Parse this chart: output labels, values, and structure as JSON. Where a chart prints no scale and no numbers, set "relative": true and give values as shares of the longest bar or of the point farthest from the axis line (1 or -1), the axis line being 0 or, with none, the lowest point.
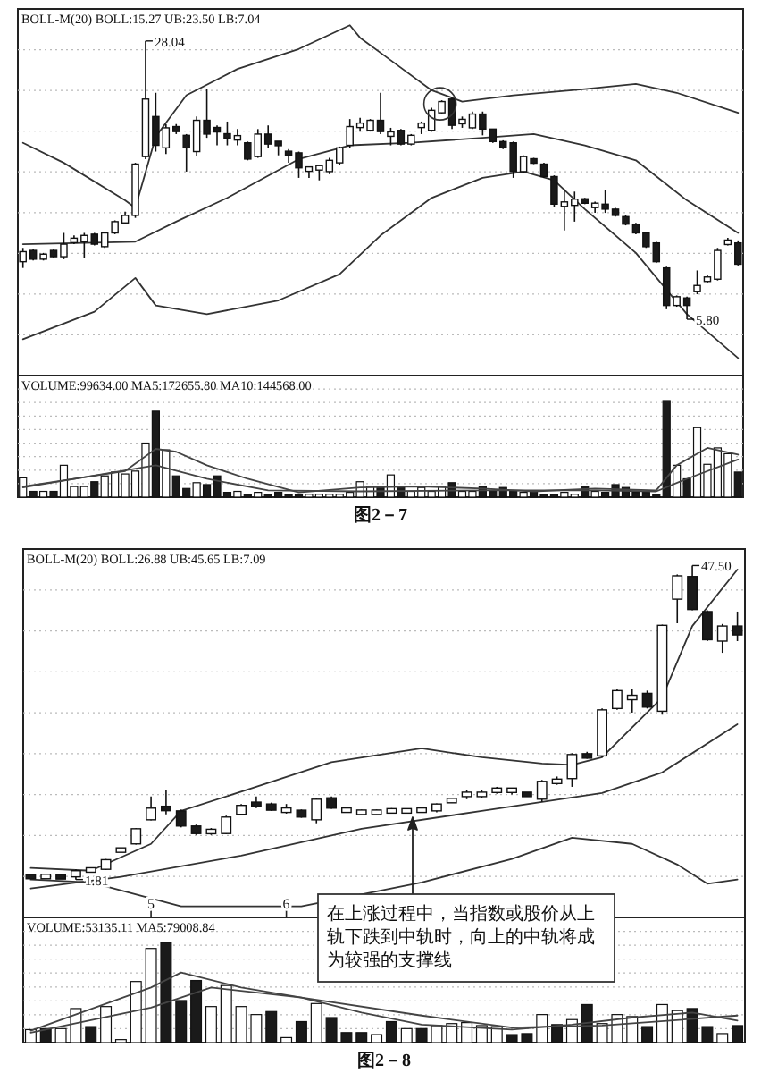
{
  "chart_data": [
    {
      "type": "candlestick",
      "title": "BOLL-M(20) BOLL:15.27 UB:23.50 LB:7.04",
      "grid": true,
      "ylim": [
        1.3,
        30.6
      ],
      "categories": [
        null,
        null,
        null,
        null,
        null,
        null,
        null,
        null,
        null,
        null,
        null,
        null,
        null,
        null,
        null,
        null,
        null,
        null,
        null,
        null,
        null,
        null,
        null,
        null,
        null,
        null,
        null,
        null,
        null,
        null,
        null,
        null,
        null,
        null,
        null,
        null,
        null,
        null,
        null,
        null,
        null,
        null,
        null,
        null,
        null,
        null,
        null,
        null,
        null,
        null,
        null,
        null,
        null,
        null,
        null,
        null,
        null,
        null,
        null,
        null,
        null,
        null,
        null,
        null,
        null,
        null,
        null,
        null,
        null,
        null,
        null
      ],
      "ohlc": [
        [
          10.4,
          11.5,
          9.9,
          11.2
        ],
        [
          11.3,
          11.4,
          10.5,
          10.6
        ],
        [
          10.6,
          11.1,
          10.5,
          11.0
        ],
        [
          11.3,
          11.4,
          10.7,
          10.8
        ],
        [
          10.8,
          12.7,
          10.6,
          11.8
        ],
        [
          12.1,
          12.5,
          11.8,
          12.1
        ],
        [
          12.0,
          12.7,
          10.7,
          12.5
        ],
        [
          12.6,
          12.7,
          11.7,
          11.8
        ],
        [
          11.6,
          12.8,
          11.5,
          12.7
        ],
        [
          12.7,
          13.7,
          12.6,
          13.6
        ],
        [
          13.5,
          14.4,
          13.4,
          14.1
        ],
        [
          14.1,
          18.3,
          13.9,
          18.2
        ],
        [
          18.8,
          28.04,
          18.6,
          23.4
        ],
        [
          22.0,
          23.9,
          19.2,
          19.7
        ],
        [
          19.5,
          21.4,
          19.0,
          21.1
        ],
        [
          21.2,
          21.4,
          20.6,
          20.8
        ],
        [
          20.5,
          20.6,
          17.6,
          19.5
        ],
        [
          19.2,
          22.0,
          18.8,
          21.7
        ],
        [
          21.7,
          24.2,
          20.3,
          20.6
        ],
        [
          21.0,
          21.3,
          19.7,
          20.9
        ],
        [
          20.5,
          21.6,
          19.7,
          20.4
        ],
        [
          20.3,
          21.0,
          19.7,
          20.3
        ],
        [
          19.9,
          20.0,
          18.5,
          18.6
        ],
        [
          18.8,
          21.0,
          18.7,
          20.6
        ],
        [
          20.6,
          21.3,
          19.5,
          19.8
        ],
        [
          20.0,
          20.0,
          18.9,
          19.7
        ],
        [
          19.1,
          19.4,
          18.3,
          19.0
        ],
        [
          19.1,
          19.2,
          17.1,
          17.9
        ],
        [
          17.8,
          18.0,
          17.1,
          17.8
        ],
        [
          17.9,
          18.1,
          16.9,
          17.9
        ],
        [
          17.6,
          18.7,
          17.4,
          18.5
        ],
        [
          18.3,
          19.6,
          18.1,
          19.5
        ],
        [
          19.7,
          21.8,
          19.5,
          21.2
        ],
        [
          21.3,
          21.9,
          20.8,
          21.3
        ],
        [
          20.9,
          21.8,
          20.8,
          21.7
        ],
        [
          21.7,
          23.9,
          20.6,
          20.8
        ],
        [
          20.6,
          21.1,
          19.7,
          20.6
        ],
        [
          20.9,
          21.0,
          19.7,
          19.8
        ],
        [
          19.8,
          20.6,
          19.7,
          20.5
        ],
        [
          21.3,
          21.6,
          20.6,
          21.3
        ],
        [
          20.9,
          22.7,
          20.8,
          22.5
        ],
        [
          22.3,
          23.3,
          22.2,
          23.2
        ],
        [
          23.4,
          23.5,
          21.0,
          21.3
        ],
        [
          21.6,
          22.0,
          21.1,
          21.6
        ],
        [
          21.1,
          22.4,
          21.0,
          22.2
        ],
        [
          22.2,
          22.4,
          20.5,
          21.0
        ],
        [
          21.0,
          21.0,
          19.9,
          20.0
        ],
        [
          20.0,
          20.1,
          19.4,
          19.5
        ],
        [
          19.9,
          20.0,
          17.1,
          17.6
        ],
        [
          17.6,
          18.9,
          17.5,
          18.8
        ],
        [
          18.6,
          18.7,
          18.2,
          18.3
        ],
        [
          18.2,
          18.3,
          17.1,
          17.2
        ],
        [
          17.2,
          17.3,
          14.8,
          15.0
        ],
        [
          15.0,
          16.2,
          12.9,
          15.0
        ],
        [
          14.9,
          16.0,
          13.6,
          15.4
        ],
        [
          15.4,
          15.5,
          15.0,
          15.1
        ],
        [
          14.9,
          15.2,
          14.3,
          14.9
        ],
        [
          15.0,
          16.1,
          14.3,
          14.6
        ],
        [
          14.6,
          14.7,
          14.0,
          14.1
        ],
        [
          14.0,
          14.1,
          13.3,
          13.4
        ],
        [
          13.4,
          13.5,
          12.6,
          12.7
        ],
        [
          12.7,
          12.8,
          11.5,
          11.6
        ],
        [
          11.9,
          12.0,
          10.3,
          10.4
        ],
        [
          9.9,
          10.0,
          6.6,
          6.9
        ],
        [
          6.9,
          7.7,
          6.8,
          7.6
        ],
        [
          7.5,
          7.6,
          5.8,
          6.9
        ],
        [
          8.0,
          9.7,
          7.8,
          8.5
        ],
        [
          9.0,
          9.3,
          8.7,
          9.0
        ],
        [
          9.0,
          11.5,
          8.9,
          11.3
        ],
        [
          11.8,
          12.3,
          11.7,
          12.1
        ],
        [
          11.9,
          12.1,
          10.1,
          10.2
        ]
      ],
      "series": [
        {
          "type": "line",
          "color": "#333333",
          "values": [
            19.9,
            null,
            null,
            null,
            18.3,
            null,
            null,
            null,
            null,
            null,
            15.3,
            14.7,
            null,
            20.4,
            null,
            null,
            23.7,
            null,
            null,
            null,
            null,
            25.8,
            null,
            null,
            null,
            null,
            null,
            27.4,
            null,
            null,
            null,
            null,
            29.3,
            28.3,
            null,
            null,
            26.5,
            null,
            null,
            null,
            24.1,
            null,
            null,
            23.2,
            null,
            null,
            null,
            null,
            23.7,
            null,
            null,
            null,
            null,
            null,
            null,
            24.2,
            null,
            null,
            null,
            null,
            24.6,
            null,
            null,
            null,
            23.9,
            null,
            null,
            null,
            null,
            null,
            22.3
          ]
        },
        {
          "type": "line",
          "color": "#333333",
          "values": [
            11.8,
            null,
            null,
            null,
            null,
            null,
            null,
            null,
            null,
            null,
            null,
            12.0,
            null,
            null,
            null,
            13.6,
            null,
            null,
            null,
            null,
            15.5,
            null,
            null,
            null,
            null,
            null,
            null,
            18.6,
            null,
            null,
            null,
            null,
            19.7,
            null,
            null,
            null,
            null,
            null,
            19.9,
            null,
            null,
            null,
            null,
            null,
            null,
            20.3,
            null,
            null,
            null,
            null,
            20.6,
            null,
            null,
            null,
            null,
            19.7,
            null,
            null,
            null,
            null,
            18.5,
            null,
            null,
            null,
            null,
            15.3,
            null,
            null,
            null,
            null,
            12.7
          ]
        },
        {
          "type": "line",
          "color": "#333333",
          "values": [
            4.2,
            null,
            null,
            null,
            null,
            null,
            null,
            6.4,
            null,
            null,
            null,
            9.1,
            null,
            6.9,
            null,
            null,
            null,
            null,
            6.2,
            null,
            null,
            null,
            null,
            null,
            null,
            7.3,
            null,
            null,
            null,
            null,
            null,
            9.4,
            null,
            null,
            null,
            12.5,
            null,
            null,
            null,
            null,
            15.5,
            null,
            null,
            null,
            null,
            17.1,
            null,
            null,
            null,
            17.6,
            null,
            null,
            16.9,
            null,
            null,
            14.6,
            null,
            null,
            null,
            null,
            11.1,
            null,
            null,
            null,
            null,
            6.2,
            null,
            null,
            null,
            null,
            2.7
          ]
        }
      ],
      "annotations": [
        "28.04",
        "5.80"
      ]
    },
    {
      "type": "bar",
      "relative": true,
      "title": "VOLUME:99634.00 MA5:172655.80 MA10:144568.00",
      "grid": true,
      "categories": [
        null,
        null,
        null,
        null,
        null,
        null,
        null,
        null,
        null,
        null,
        null,
        null,
        null,
        null,
        null,
        null,
        null,
        null,
        null,
        null,
        null,
        null,
        null,
        null,
        null,
        null,
        null,
        null,
        null,
        null,
        null,
        null,
        null,
        null,
        null,
        null,
        null,
        null,
        null,
        null,
        null,
        null,
        null,
        null,
        null,
        null,
        null,
        null,
        null,
        null,
        null,
        null,
        null,
        null,
        null,
        null,
        null,
        null,
        null,
        null,
        null,
        null,
        null,
        null,
        null,
        null,
        null,
        null,
        null,
        null,
        null
      ],
      "series": [
        {
          "type": "bar",
          "values": [
            0.2,
            0.06,
            0.06,
            0.06,
            0.33,
            0.11,
            0.11,
            0.16,
            0.22,
            0.26,
            0.24,
            0.27,
            0.56,
            0.89,
            0.49,
            0.22,
            0.09,
            0.15,
            0.13,
            0.22,
            0.05,
            0.06,
            0.03,
            0.05,
            0.03,
            0.05,
            0.03,
            0.03,
            0.03,
            0.03,
            0.03,
            0.03,
            0.05,
            0.16,
            0.11,
            0.1,
            0.23,
            0.1,
            0.06,
            0.1,
            0.06,
            0.11,
            0.15,
            0.06,
            0.06,
            0.11,
            0.06,
            0.1,
            0.06,
            0.05,
            0.06,
            0.03,
            0.03,
            0.05,
            0.03,
            0.11,
            0.06,
            0.05,
            0.13,
            0.1,
            0.05,
            0.05,
            0.03,
            1,
            0.33,
            0.19,
            0.72,
            0.34,
            0.51,
            0.45,
            0.26
          ],
          "colors": [
            "#ffffff",
            "#1a1a1a",
            "#ffffff",
            "#1a1a1a",
            "#ffffff",
            "#ffffff",
            "#ffffff",
            "#1a1a1a",
            "#ffffff",
            "#ffffff",
            "#ffffff",
            "#ffffff",
            "#ffffff",
            "#1a1a1a",
            "#ffffff",
            "#1a1a1a",
            "#1a1a1a",
            "#ffffff",
            "#1a1a1a",
            "#1a1a1a",
            "#1a1a1a",
            "#ffffff",
            "#1a1a1a",
            "#ffffff",
            "#1a1a1a",
            "#1a1a1a",
            "#1a1a1a",
            "#1a1a1a",
            "#ffffff",
            "#ffffff",
            "#ffffff",
            "#ffffff",
            "#ffffff",
            "#ffffff",
            "#ffffff",
            "#1a1a1a",
            "#ffffff",
            "#1a1a1a",
            "#ffffff",
            "#ffffff",
            "#ffffff",
            "#ffffff",
            "#1a1a1a",
            "#ffffff",
            "#ffffff",
            "#1a1a1a",
            "#1a1a1a",
            "#1a1a1a",
            "#1a1a1a",
            "#ffffff",
            "#1a1a1a",
            "#1a1a1a",
            "#1a1a1a",
            "#ffffff",
            "#ffffff",
            "#1a1a1a",
            "#ffffff",
            "#1a1a1a",
            "#1a1a1a",
            "#1a1a1a",
            "#1a1a1a",
            "#1a1a1a",
            "#1a1a1a",
            "#1a1a1a",
            "#ffffff",
            "#1a1a1a",
            "#ffffff",
            "#ffffff",
            "#ffffff",
            "#ffffff",
            "#1a1a1a"
          ]
        },
        {
          "type": "line",
          "color": "#444444",
          "values": [
            0.11,
            null,
            null,
            null,
            null,
            null,
            null,
            null,
            null,
            null,
            0.27,
            null,
            null,
            0.5,
            null,
            0.47,
            null,
            null,
            0.33,
            null,
            null,
            null,
            0.19,
            null,
            null,
            null,
            null,
            0.05,
            null,
            null,
            null,
            null,
            null,
            0.1,
            null,
            null,
            null,
            null,
            null,
            0.11,
            null,
            null,
            null,
            null,
            null,
            0.09,
            null,
            null,
            null,
            null,
            0.06,
            null,
            null,
            null,
            null,
            null,
            0.09,
            null,
            null,
            null,
            null,
            null,
            0.07,
            null,
            0.33,
            null,
            null,
            0.51,
            null,
            null,
            0.44
          ]
        },
        {
          "type": "line",
          "color": "#444444",
          "values": [
            0.1,
            null,
            null,
            null,
            null,
            null,
            null,
            null,
            null,
            null,
            null,
            null,
            null,
            0.33,
            null,
            null,
            null,
            null,
            0.19,
            null,
            null,
            null,
            null,
            null,
            0.07,
            null,
            null,
            null,
            null,
            null,
            null,
            null,
            null,
            0.06,
            null,
            null,
            null,
            null,
            null,
            null,
            null,
            null,
            null,
            null,
            null,
            0.07,
            null,
            null,
            null,
            null,
            null,
            null,
            null,
            null,
            null,
            null,
            0.07,
            null,
            null,
            null,
            null,
            null,
            0.06,
            null,
            null,
            0.19,
            null,
            null,
            null,
            null,
            0.39
          ]
        }
      ],
      "annotations": [
        "图2－7"
      ]
    },
    {
      "type": "candlestick",
      "title": "BOLL-M(20) BOLL:26.88 UB:45.65 LB:7.09",
      "grid": true,
      "ylim": [
        -3.7,
        49.9
      ],
      "categories": [
        null,
        null,
        null,
        null,
        null,
        null,
        null,
        null,
        "5",
        null,
        null,
        null,
        null,
        null,
        null,
        null,
        null,
        "6",
        null,
        null,
        null,
        null,
        null,
        null,
        null,
        null,
        null,
        null,
        null,
        null,
        null,
        null,
        null,
        null,
        null,
        null,
        null,
        null,
        null,
        null,
        null,
        null,
        null,
        null,
        null,
        null,
        null,
        null
      ],
      "ohlc": [
        [
          2.3,
          2.5,
          2.1,
          2.2
        ],
        [
          2.2,
          2.4,
          2.0,
          2.3
        ],
        [
          2.3,
          2.5,
          2.0,
          2.1
        ],
        [
          2.2,
          3.3,
          1.81,
          3.1
        ],
        [
          3.1,
          3.5,
          2.9,
          3.3
        ],
        [
          3.3,
          4.8,
          3.2,
          4.7
        ],
        [
          6.1,
          6.2,
          6.0,
          6.1
        ],
        [
          7.0,
          9.3,
          6.9,
          9.2
        ],
        [
          10.5,
          13.9,
          10.4,
          12.2
        ],
        [
          12.2,
          14.8,
          11.3,
          12.1
        ],
        [
          11.8,
          12.0,
          9.4,
          9.6
        ],
        [
          9.6,
          9.8,
          8.3,
          8.5
        ],
        [
          8.8,
          9.3,
          8.3,
          8.8
        ],
        [
          8.5,
          11.1,
          8.4,
          10.9
        ],
        [
          11.3,
          12.8,
          11.2,
          12.6
        ],
        [
          12.8,
          13.9,
          12.2,
          12.7
        ],
        [
          12.8,
          13.0,
          11.8,
          11.9
        ],
        [
          11.9,
          12.8,
          11.4,
          11.9
        ],
        [
          11.9,
          12.0,
          10.8,
          10.9
        ],
        [
          10.5,
          13.6,
          10.0,
          13.5
        ],
        [
          13.7,
          13.9,
          12.1,
          12.2
        ],
        [
          11.9,
          12.3,
          11.6,
          11.9
        ],
        [
          11.6,
          12.0,
          11.3,
          11.6
        ],
        [
          11.6,
          12.0,
          11.3,
          11.6
        ],
        [
          11.8,
          12.2,
          11.4,
          11.8
        ],
        [
          11.8,
          12.1,
          11.5,
          11.8
        ],
        [
          11.9,
          12.1,
          11.7,
          11.9
        ],
        [
          11.8,
          12.9,
          11.6,
          12.8
        ],
        [
          13.3,
          13.6,
          13.0,
          13.3
        ],
        [
          14.2,
          14.8,
          13.5,
          14.2
        ],
        [
          14.2,
          14.8,
          13.7,
          14.2
        ],
        [
          14.8,
          15.3,
          14.3,
          14.8
        ],
        [
          14.8,
          15.1,
          14.2,
          14.8
        ],
        [
          14.4,
          14.5,
          13.9,
          14.0
        ],
        [
          13.5,
          16.3,
          13.1,
          16.1
        ],
        [
          16.1,
          16.8,
          15.6,
          16.1
        ],
        [
          16.5,
          20.2,
          15.3,
          20.0
        ],
        [
          20.0,
          20.4,
          19.4,
          19.6
        ],
        [
          19.8,
          26.7,
          19.6,
          26.5
        ],
        [
          26.7,
          29.5,
          26.5,
          29.3
        ],
        [
          28.3,
          29.5,
          26.1,
          28.3
        ],
        [
          28.9,
          29.3,
          26.7,
          26.9
        ],
        [
          26.3,
          38.9,
          25.8,
          38.8
        ],
        [
          42.6,
          46.2,
          39.1,
          46.0
        ],
        [
          45.9,
          47.5,
          41.0,
          41.1
        ],
        [
          40.8,
          41.0,
          36.5,
          36.7
        ],
        [
          36.5,
          39.0,
          34.8,
          38.7
        ],
        [
          38.7,
          40.8,
          36.5,
          37.4
        ]
      ],
      "series": [
        {
          "type": "line",
          "color": "#333333",
          "values": [
            3.5,
            null,
            null,
            null,
            3.1,
            null,
            null,
            null,
            7.0,
            null,
            11.8,
            null,
            null,
            null,
            null,
            15.3,
            null,
            null,
            null,
            null,
            18.9,
            null,
            null,
            null,
            null,
            null,
            20.9,
            null,
            null,
            null,
            19.6,
            null,
            null,
            null,
            18.7,
            null,
            18.5,
            null,
            19.6,
            null,
            null,
            null,
            28.3,
            null,
            38.7,
            null,
            null,
            46.9
          ]
        },
        {
          "type": "line",
          "color": "#333333",
          "values": [
            0.5,
            null,
            null,
            null,
            null,
            null,
            2.2,
            null,
            null,
            null,
            null,
            null,
            null,
            null,
            5.3,
            null,
            null,
            null,
            null,
            null,
            null,
            null,
            9.2,
            null,
            null,
            null,
            null,
            null,
            null,
            null,
            11.8,
            null,
            null,
            null,
            13.1,
            null,
            null,
            null,
            14.4,
            null,
            null,
            null,
            17.4,
            null,
            null,
            null,
            null,
            24.4
          ]
        },
        {
          "type": "line",
          "color": "#333333",
          "values": [
            1.8,
            null,
            null,
            null,
            1.4,
            null,
            null,
            null,
            null,
            null,
            -2.1,
            null,
            null,
            null,
            null,
            null,
            null,
            null,
            -2.1,
            null,
            null,
            null,
            null,
            null,
            null,
            null,
            1.4,
            null,
            null,
            null,
            null,
            null,
            4.8,
            null,
            null,
            null,
            7.9,
            null,
            null,
            null,
            7.0,
            null,
            null,
            4.0,
            null,
            1.2,
            null,
            1.8
          ]
        }
      ],
      "annotations": [
        "47.50",
        "1.81",
        "在上涨过程中，当指数或股价从上轨下跌到中轨时，向上的中轨将成为较强的支撑线"
      ]
    },
    {
      "type": "bar",
      "relative": true,
      "title": "VOLUME:53135.11 MA5:79008.84",
      "grid": true,
      "categories": [
        null,
        null,
        null,
        null,
        null,
        null,
        null,
        null,
        null,
        null,
        null,
        null,
        null,
        null,
        null,
        null,
        null,
        null,
        null,
        null,
        null,
        null,
        null,
        null,
        null,
        null,
        null,
        null,
        null,
        null,
        null,
        null,
        null,
        null,
        null,
        null,
        null,
        null,
        null,
        null,
        null,
        null,
        null,
        null,
        null,
        null,
        null,
        null
      ],
      "series": [
        {
          "type": "bar",
          "values": [
            0.13,
            0.14,
            0.14,
            0.34,
            0.16,
            0.36,
            0.03,
            0.61,
            0.94,
            1,
            0.42,
            0.62,
            0.36,
            0.57,
            0.36,
            0.28,
            0.31,
            0.05,
            0.21,
            0.39,
            0.25,
            0.1,
            0.1,
            0.08,
            0.21,
            0.14,
            0.14,
            0.17,
            0.19,
            0.2,
            0.17,
            0.16,
            0.08,
            0.09,
            0.28,
            0.18,
            0.23,
            0.38,
            0.19,
            0.28,
            0.26,
            0.16,
            0.38,
            0.32,
            0.34,
            0.16,
            0.09,
            0.17
          ],
          "colors": [
            "#ffffff",
            "#1a1a1a",
            "#ffffff",
            "#ffffff",
            "#1a1a1a",
            "#ffffff",
            "#ffffff",
            "#ffffff",
            "#ffffff",
            "#1a1a1a",
            "#1a1a1a",
            "#1a1a1a",
            "#ffffff",
            "#ffffff",
            "#ffffff",
            "#ffffff",
            "#1a1a1a",
            "#ffffff",
            "#1a1a1a",
            "#ffffff",
            "#1a1a1a",
            "#1a1a1a",
            "#1a1a1a",
            "#ffffff",
            "#1a1a1a",
            "#ffffff",
            "#1a1a1a",
            "#ffffff",
            "#ffffff",
            "#ffffff",
            "#ffffff",
            "#ffffff",
            "#1a1a1a",
            "#1a1a1a",
            "#ffffff",
            "#1a1a1a",
            "#ffffff",
            "#1a1a1a",
            "#ffffff",
            "#ffffff",
            "#ffffff",
            "#1a1a1a",
            "#ffffff",
            "#ffffff",
            "#1a1a1a",
            "#1a1a1a",
            "#ffffff",
            "#1a1a1a"
          ]
        },
        {
          "type": "line",
          "color": "#444444",
          "values": [
            0.12,
            null,
            null,
            null,
            null,
            null,
            null,
            null,
            0.55,
            null,
            0.7,
            null,
            null,
            null,
            0.55,
            null,
            null,
            null,
            0.45,
            null,
            null,
            null,
            0.3,
            null,
            null,
            null,
            0.18,
            null,
            null,
            null,
            null,
            null,
            0.13,
            null,
            null,
            null,
            0.18,
            null,
            null,
            null,
            0.25,
            null,
            null,
            null,
            0.3,
            null,
            null,
            0.22
          ]
        },
        {
          "type": "line",
          "color": "#444444",
          "values": [
            0.1,
            null,
            null,
            null,
            null,
            null,
            null,
            null,
            0.35,
            null,
            null,
            null,
            0.55,
            null,
            null,
            null,
            null,
            null,
            0.45,
            null,
            null,
            null,
            null,
            null,
            null,
            null,
            0.27,
            null,
            null,
            null,
            null,
            null,
            0.15,
            null,
            null,
            null,
            null,
            null,
            0.17,
            null,
            null,
            null,
            null,
            null,
            null,
            null,
            null,
            0.27
          ]
        }
      ],
      "annotations": [
        "图2－8"
      ]
    }
  ]
}
